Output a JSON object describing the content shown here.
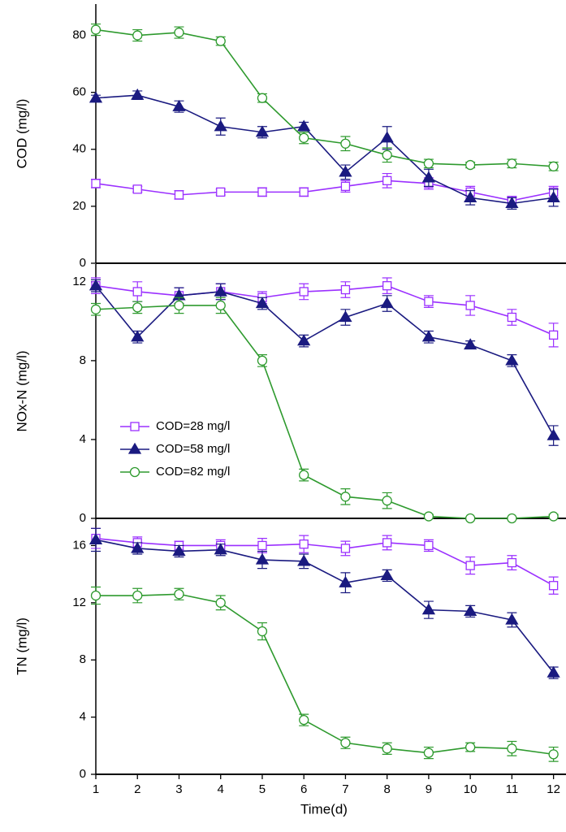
{
  "chart_data": [
    {
      "type": "line",
      "ylabel": "COD (mg/l)",
      "x": [
        1,
        2,
        3,
        4,
        5,
        6,
        7,
        8,
        9,
        10,
        11,
        12
      ],
      "xlim": [
        1,
        12.3
      ],
      "ylim": [
        0,
        91
      ],
      "yticks": [
        0,
        20,
        40,
        60,
        80
      ],
      "series": [
        {
          "color": "#9b30ff",
          "marker": "square",
          "filled": false,
          "values": [
            28,
            26,
            24,
            25,
            25,
            25,
            27,
            29,
            28,
            25,
            22,
            25
          ],
          "errors": [
            1.5,
            1,
            1.5,
            1,
            1.5,
            1.5,
            2,
            2.5,
            2,
            2,
            1.5,
            2
          ]
        },
        {
          "color": "#1a1a80",
          "marker": "triangle",
          "filled": true,
          "values": [
            58,
            59,
            55,
            48,
            46,
            48,
            32,
            44,
            30,
            23,
            21,
            23
          ],
          "errors": [
            1,
            1.5,
            2,
            3,
            2,
            1.5,
            2.5,
            4,
            3,
            2.5,
            2,
            3
          ]
        },
        {
          "color": "#2e9a2e",
          "marker": "circle",
          "filled": false,
          "values": [
            82,
            80,
            81,
            78,
            58,
            44,
            42,
            38,
            35,
            34.5,
            35,
            34
          ],
          "errors": [
            2,
            2,
            2,
            1.5,
            1.5,
            2,
            2.5,
            2.5,
            1.5,
            1,
            1.5,
            1.5
          ]
        }
      ]
    },
    {
      "type": "line",
      "ylabel": "NOx-N (mg/l)",
      "x": [
        1,
        2,
        3,
        4,
        5,
        6,
        7,
        8,
        9,
        10,
        11,
        12
      ],
      "xlim": [
        1,
        12.3
      ],
      "ylim": [
        0,
        12.9
      ],
      "yticks": [
        0,
        4,
        8,
        12
      ],
      "legend": "left",
      "series": [
        {
          "name": "COD=28 mg/l",
          "color": "#9b30ff",
          "marker": "square",
          "filled": false,
          "values": [
            11.8,
            11.5,
            11.3,
            11.5,
            11.2,
            11.5,
            11.6,
            11.8,
            11.0,
            10.8,
            10.2,
            9.3
          ],
          "errors": [
            0.4,
            0.5,
            0.4,
            0.4,
            0.3,
            0.4,
            0.4,
            0.4,
            0.3,
            0.5,
            0.4,
            0.6
          ]
        },
        {
          "name": "COD=58 mg/l",
          "color": "#1a1a80",
          "marker": "triangle",
          "filled": true,
          "values": [
            11.8,
            9.2,
            11.3,
            11.5,
            10.9,
            9.0,
            10.2,
            10.9,
            9.2,
            8.8,
            8.0,
            4.2
          ],
          "errors": [
            0.3,
            0.3,
            0.4,
            0.4,
            0.3,
            0.3,
            0.4,
            0.4,
            0.3,
            0.2,
            0.3,
            0.5
          ]
        },
        {
          "name": "COD=82 mg/l",
          "color": "#2e9a2e",
          "marker": "circle",
          "filled": false,
          "values": [
            10.6,
            10.7,
            10.8,
            10.8,
            8.0,
            2.2,
            1.1,
            0.9,
            0.1,
            0,
            0,
            0.1
          ],
          "errors": [
            0.3,
            0.3,
            0.4,
            0.4,
            0.3,
            0.3,
            0.4,
            0.4,
            0.1,
            0.05,
            0.05,
            0.1
          ]
        }
      ]
    },
    {
      "type": "line",
      "ylabel": "TN (mg/l)",
      "xlabel": "Time(d)",
      "x": [
        1,
        2,
        3,
        4,
        5,
        6,
        7,
        8,
        9,
        10,
        11,
        12
      ],
      "xlim": [
        1,
        12.3
      ],
      "xticks": [
        1,
        2,
        3,
        4,
        5,
        6,
        7,
        8,
        9,
        10,
        11,
        12
      ],
      "ylim": [
        0,
        17.9
      ],
      "yticks": [
        0,
        4,
        8,
        12,
        16
      ],
      "series": [
        {
          "color": "#9b30ff",
          "marker": "square",
          "filled": false,
          "values": [
            16.5,
            16.2,
            16.0,
            16.0,
            16.0,
            16.1,
            15.8,
            16.2,
            16.0,
            14.6,
            14.8,
            13.2
          ],
          "errors": [
            0.7,
            0.4,
            0.3,
            0.4,
            0.5,
            0.6,
            0.5,
            0.5,
            0.4,
            0.6,
            0.5,
            0.6
          ]
        },
        {
          "color": "#1a1a80",
          "marker": "triangle",
          "filled": true,
          "values": [
            16.4,
            15.8,
            15.6,
            15.7,
            15.0,
            14.9,
            13.4,
            13.9,
            11.5,
            11.4,
            10.8,
            7.1
          ],
          "errors": [
            0.8,
            0.4,
            0.4,
            0.4,
            0.6,
            0.5,
            0.7,
            0.4,
            0.6,
            0.4,
            0.5,
            0.4
          ]
        },
        {
          "color": "#2e9a2e",
          "marker": "circle",
          "filled": false,
          "values": [
            12.5,
            12.5,
            12.6,
            12.0,
            10.0,
            3.8,
            2.2,
            1.8,
            1.5,
            1.9,
            1.8,
            1.4
          ],
          "errors": [
            0.6,
            0.5,
            0.4,
            0.5,
            0.6,
            0.4,
            0.4,
            0.4,
            0.4,
            0.3,
            0.5,
            0.5
          ]
        }
      ]
    }
  ]
}
